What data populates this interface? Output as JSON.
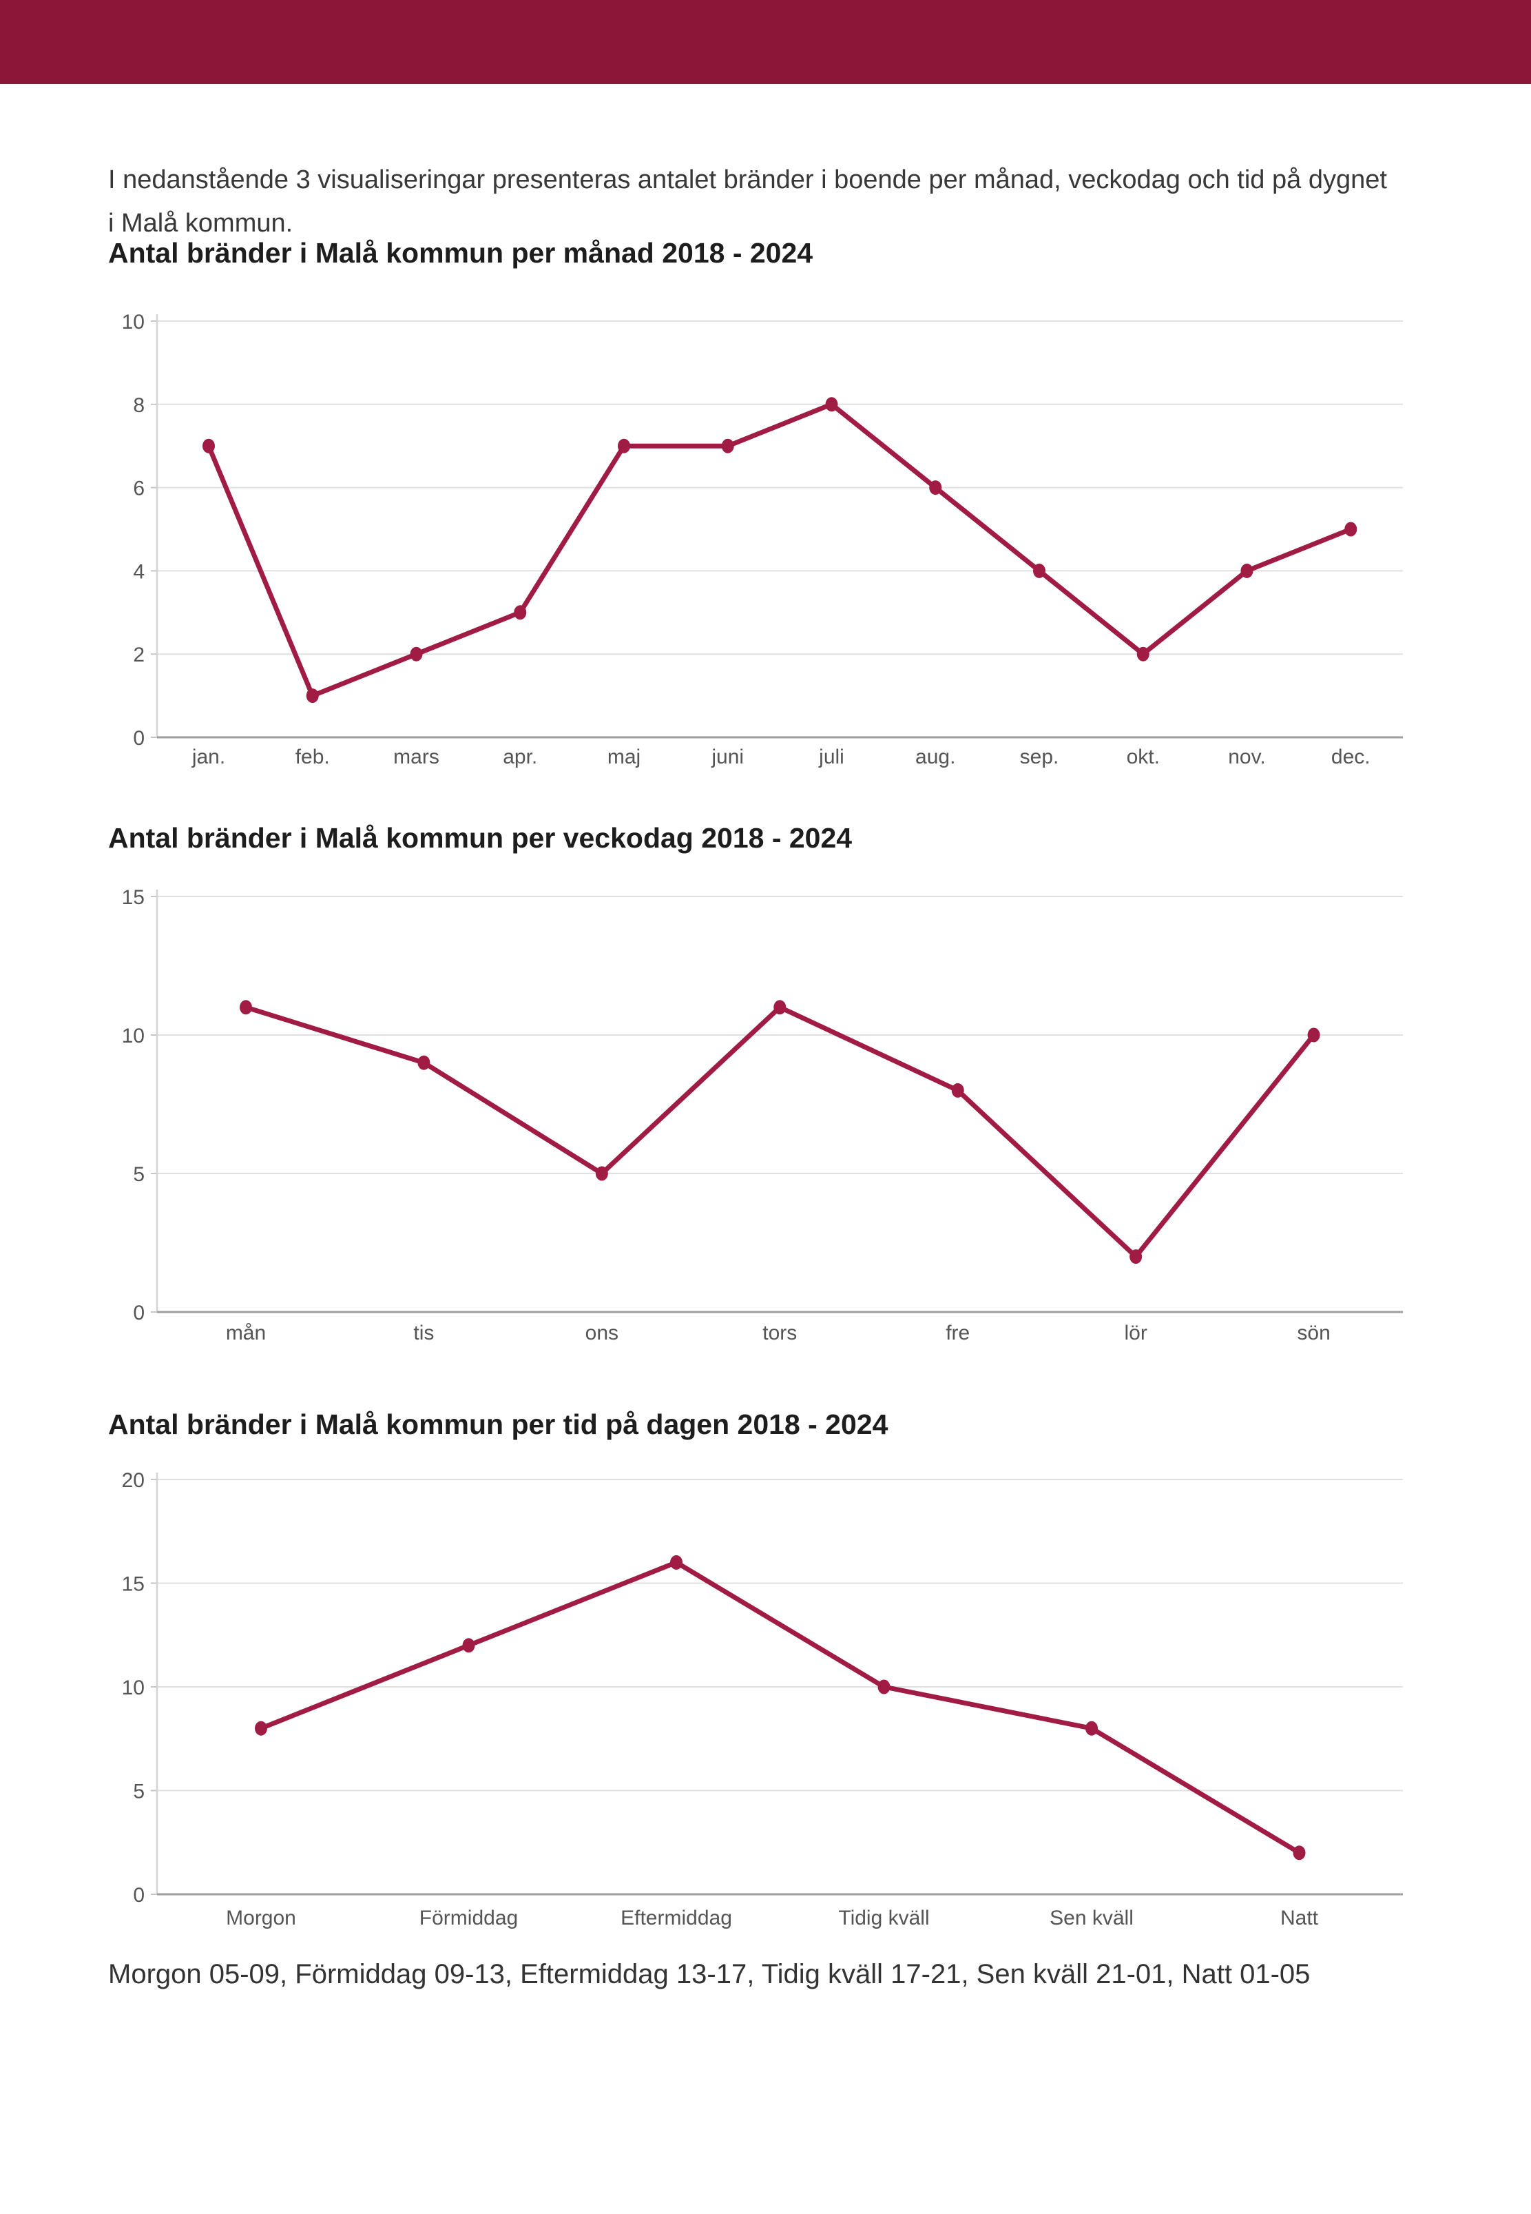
{
  "page": {
    "header_color": "#8C1638",
    "accent_color": "#A11C44",
    "background": "#ffffff"
  },
  "intro": {
    "lines": [
      "I nedanstående 3 visualiseringar presenteras antalet bränder i boende per månad, veckodag och tid på dygnet",
      "i Malå kommun."
    ]
  },
  "caption": "Morgon 05-09, Förmiddag 09-13, Eftermiddag 13-17, Tidig kväll 17-21, Sen kväll 21-01, Natt 01-05",
  "chart_data": [
    {
      "type": "line",
      "title": "Antal bränder i Malå kommun per månad 2018 - 2024",
      "categories": [
        "jan.",
        "feb.",
        "mars",
        "apr.",
        "maj",
        "juni",
        "juli",
        "aug.",
        "sep.",
        "okt.",
        "nov.",
        "dec."
      ],
      "values": [
        7,
        1,
        2,
        3,
        7,
        7,
        8,
        6,
        4,
        2,
        4,
        5
      ],
      "xlabel": "",
      "ylabel": "",
      "ylim": [
        0,
        10
      ],
      "yticks": [
        0,
        2,
        4,
        6,
        8,
        10
      ],
      "grid": true,
      "legend": false,
      "line_color": "#A11C44"
    },
    {
      "type": "line",
      "title": "Antal bränder i Malå kommun per veckodag 2018 - 2024",
      "categories": [
        "mån",
        "tis",
        "ons",
        "tors",
        "fre",
        "lör",
        "sön"
      ],
      "values": [
        11,
        9,
        5,
        11,
        8,
        2,
        10
      ],
      "xlabel": "",
      "ylabel": "",
      "ylim": [
        0,
        15
      ],
      "yticks": [
        0,
        5,
        10,
        15
      ],
      "grid": true,
      "legend": false,
      "line_color": "#A11C44"
    },
    {
      "type": "line",
      "title": "Antal bränder i Malå kommun per tid på dagen 2018 - 2024",
      "categories": [
        "Morgon",
        "Förmiddag",
        "Eftermiddag",
        "Tidig kväll",
        "Sen kväll",
        "Natt"
      ],
      "values": [
        8,
        12,
        16,
        10,
        8,
        2
      ],
      "xlabel": "",
      "ylabel": "",
      "ylim": [
        0,
        20
      ],
      "yticks": [
        0,
        5,
        10,
        15,
        20
      ],
      "grid": true,
      "legend": false,
      "line_color": "#A11C44"
    }
  ]
}
